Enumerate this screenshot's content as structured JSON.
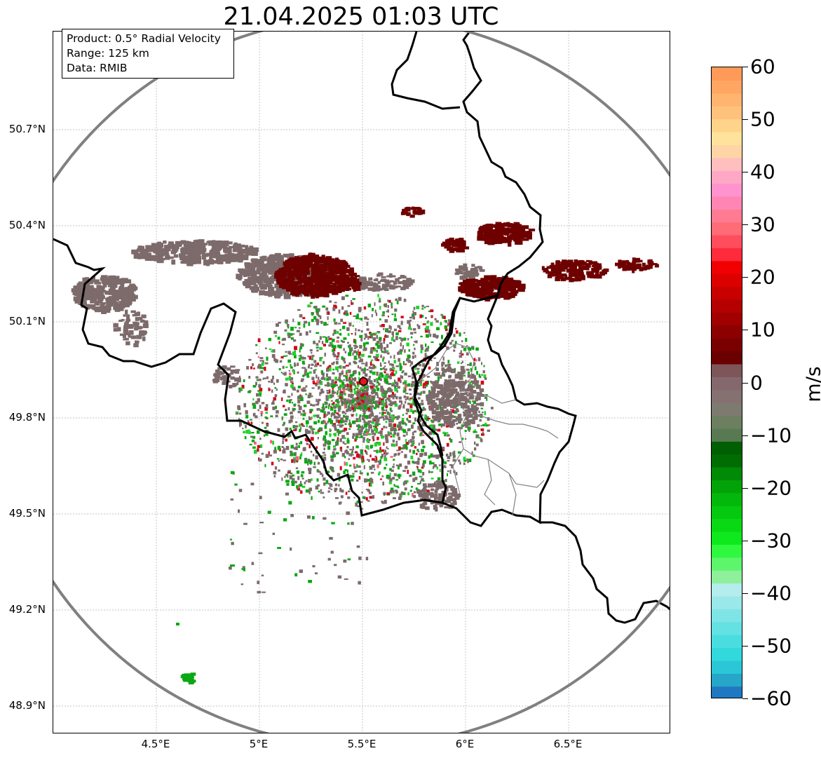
{
  "title": "21.04.2025 01:03 UTC",
  "info": {
    "product": "Product: 0.5° Radial Velocity",
    "range": "Range: 125 km",
    "data": "Data: RMIB"
  },
  "axes": {
    "lat_ticks": [
      "50.7°N",
      "50.4°N",
      "50.1°N",
      "49.8°N",
      "49.5°N",
      "49.2°N",
      "48.9°N"
    ],
    "lat_values": [
      50.7,
      50.4,
      50.1,
      49.8,
      49.5,
      49.2,
      48.9
    ],
    "lon_ticks": [
      "4.5°E",
      "5°E",
      "5.5°E",
      "6°E",
      "6.5°E"
    ],
    "lon_values": [
      4.5,
      5.0,
      5.5,
      6.0,
      6.5
    ],
    "lon_range": [
      4.0,
      7.0
    ],
    "lat_range": [
      48.8,
      51.0
    ]
  },
  "radar": {
    "site_lon": 5.505,
    "site_lat": 49.914,
    "range_km": 125,
    "site_color": "#e8141b",
    "ring_color": "#808080"
  },
  "colorbar": {
    "unit": "m/s",
    "min": -60,
    "max": 60,
    "ticks": [
      "60",
      "50",
      "40",
      "30",
      "20",
      "10",
      "0",
      "−10",
      "−20",
      "−30",
      "−40",
      "−50",
      "−60"
    ],
    "tick_values": [
      60,
      50,
      40,
      30,
      20,
      10,
      0,
      -10,
      -20,
      -30,
      -40,
      -50,
      -60
    ],
    "colors": [
      "#1f78c1",
      "#26a6c9",
      "#2bc7d6",
      "#31d8dc",
      "#4adde0",
      "#64e1e3",
      "#7fe4e6",
      "#9be8ea",
      "#b5eced",
      "#8ef09a",
      "#5cf56c",
      "#2ff93f",
      "#0ee81c",
      "#09d915",
      "#05c810",
      "#04b80b",
      "#02a308",
      "#018a05",
      "#006d03",
      "#005f02",
      "#587a52",
      "#6c8061",
      "#7d7a70",
      "#857171",
      "#84686d",
      "#7e5559",
      "#6a0000",
      "#7a0000",
      "#8c0000",
      "#a00000",
      "#b40000",
      "#c80000",
      "#dd0000",
      "#f00000",
      "#ff2a3b",
      "#ff4d5d",
      "#ff6b76",
      "#ff7b91",
      "#ff86b4",
      "#ff93cf",
      "#ffa8c6",
      "#ffbfbf",
      "#ffd5a6",
      "#ffe39c",
      "#ffd48a",
      "#ffc27d",
      "#ffb470",
      "#ffa663",
      "#ff9a58"
    ]
  },
  "map_colors": {
    "border": "#000000",
    "admin": "#808080",
    "grid": "#b0b0b0",
    "echo_inbound_dark": "#6e0000",
    "echo_outbound_gray": "#7d6a6b",
    "echo_green": "#0aa813",
    "echo_light_green": "#1fd42a",
    "echo_red": "#d40018",
    "echo_pink": "#ff5c7a"
  }
}
